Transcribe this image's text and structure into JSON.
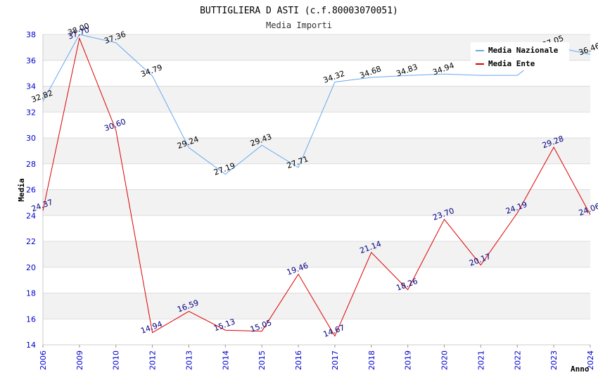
{
  "chart_data": {
    "type": "line",
    "title": "BUTTIGLIERA D ASTI (c.f.80003070051)",
    "subtitle": "Media Importi",
    "xlabel": "Anno",
    "ylabel": "Media",
    "categories": [
      "2006",
      "2009",
      "2010",
      "2012",
      "2013",
      "2014",
      "2015",
      "2016",
      "2017",
      "2018",
      "2019",
      "2020",
      "2021",
      "2022",
      "2023",
      "2024"
    ],
    "ylim": [
      14,
      38
    ],
    "yticks": [
      14,
      16,
      18,
      20,
      22,
      24,
      26,
      28,
      30,
      32,
      34,
      36,
      38
    ],
    "grid": true,
    "legend_position": "top-right",
    "series": [
      {
        "name": "Media Nazionale",
        "color": "#66aaee",
        "label_color": "#000000",
        "values": [
          32.82,
          38.0,
          37.36,
          34.79,
          29.24,
          27.19,
          29.43,
          27.71,
          34.32,
          34.68,
          34.83,
          34.94,
          34.84,
          34.84,
          37.05,
          36.46
        ],
        "labels": [
          "32.82",
          "38.00",
          "37.36",
          "34.79",
          "29.24",
          "27.19",
          "29.43",
          "27.71",
          "34.32",
          "34.68",
          "34.83",
          "34.94",
          "",
          "",
          "37.05",
          "36.46"
        ]
      },
      {
        "name": "Media Ente",
        "color": "#dd0000",
        "label_color": "#000080",
        "values": [
          24.37,
          37.7,
          30.6,
          14.94,
          16.59,
          15.13,
          15.05,
          19.46,
          14.67,
          21.14,
          18.26,
          23.7,
          20.17,
          24.19,
          29.28,
          24.06
        ],
        "labels": [
          "24.37",
          "37.70",
          "30.60",
          "14.94",
          "16.59",
          "15.13",
          "15.05",
          "19.46",
          "14.67",
          "21.14",
          "18.26",
          "23.70",
          "20.17",
          "24.19",
          "29.28",
          "24.06"
        ]
      }
    ]
  }
}
